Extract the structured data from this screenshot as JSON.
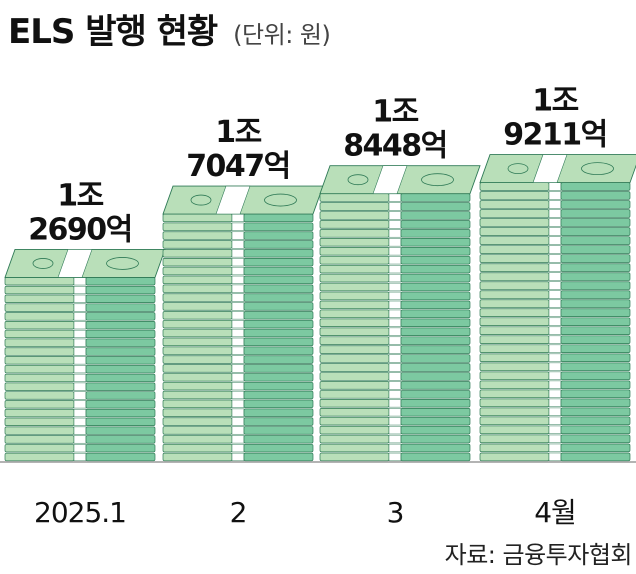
{
  "title": "ELS 발행 현황",
  "unit": "(단위: 원)",
  "source": "자료: 금융투자협회",
  "colors": {
    "bill_light": "#b9dfb9",
    "bill_dark": "#7cc9a1",
    "edge": "#2f7a56",
    "band": "#ffffff",
    "baseline": "#9a9a9a"
  },
  "chart_data": {
    "type": "bar",
    "title": "ELS 발행 현황",
    "ylabel": "(단위: 원)",
    "categories": [
      "2025.1",
      "2",
      "3",
      "4월"
    ],
    "values": [
      12690,
      17047,
      18448,
      19211
    ],
    "value_unit": "억원",
    "data_labels": [
      [
        "1조",
        "2690억"
      ],
      [
        "1조",
        "7047억"
      ],
      [
        "1조",
        "8448억"
      ],
      [
        "1조",
        "9211억"
      ]
    ],
    "ylim": [
      0,
      20000
    ],
    "grid": false,
    "legend": "none"
  }
}
